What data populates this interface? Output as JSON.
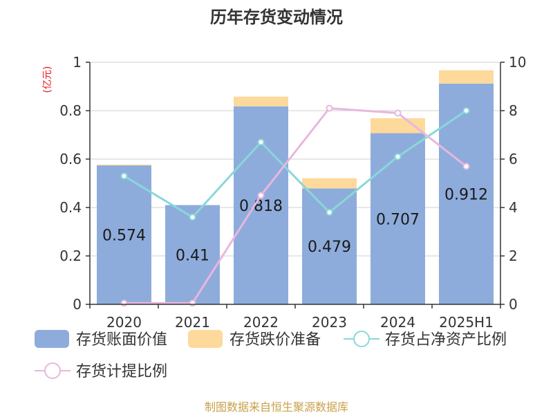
{
  "chart_data": {
    "type": "bar",
    "title": "历年存货变动情况",
    "left_unit_label": "(亿元)",
    "categories": [
      "2020",
      "2021",
      "2022",
      "2023",
      "2024",
      "2025H1"
    ],
    "left_axis": {
      "ylim": [
        0,
        1
      ],
      "ticks": [
        "0",
        "0.2",
        "0.4",
        "0.6",
        "0.8",
        "1"
      ]
    },
    "right_axis": {
      "ylim": [
        0,
        10
      ],
      "ticks": [
        "0",
        "2",
        "4",
        "6",
        "8",
        "10"
      ]
    },
    "series": [
      {
        "name": "存货账面价值",
        "kind": "bar",
        "axis": "left",
        "color": "#8eacdb",
        "values": [
          0.574,
          0.41,
          0.818,
          0.479,
          0.707,
          0.912
        ],
        "labels": [
          "0.574",
          "0.41",
          "0.818",
          "0.479",
          "0.707",
          "0.912"
        ]
      },
      {
        "name": "存货跌价准备",
        "kind": "stacked-bar",
        "axis": "left",
        "color": "#fdd99b",
        "values": [
          0.003,
          0.0,
          0.04,
          0.042,
          0.062,
          0.055
        ]
      },
      {
        "name": "存货占净资产比例",
        "kind": "line",
        "axis": "right",
        "color": "#88d8d8",
        "values": [
          5.3,
          3.6,
          6.7,
          3.8,
          6.1,
          8.0
        ]
      },
      {
        "name": "存货计提比例",
        "kind": "line",
        "axis": "right",
        "color": "#e8b7dd",
        "values": [
          0.05,
          0.05,
          4.5,
          8.1,
          7.9,
          5.7
        ]
      }
    ],
    "gridlines": true,
    "legend_position": "bottom",
    "source_text": "制图数据来自恒生聚源数据库"
  }
}
